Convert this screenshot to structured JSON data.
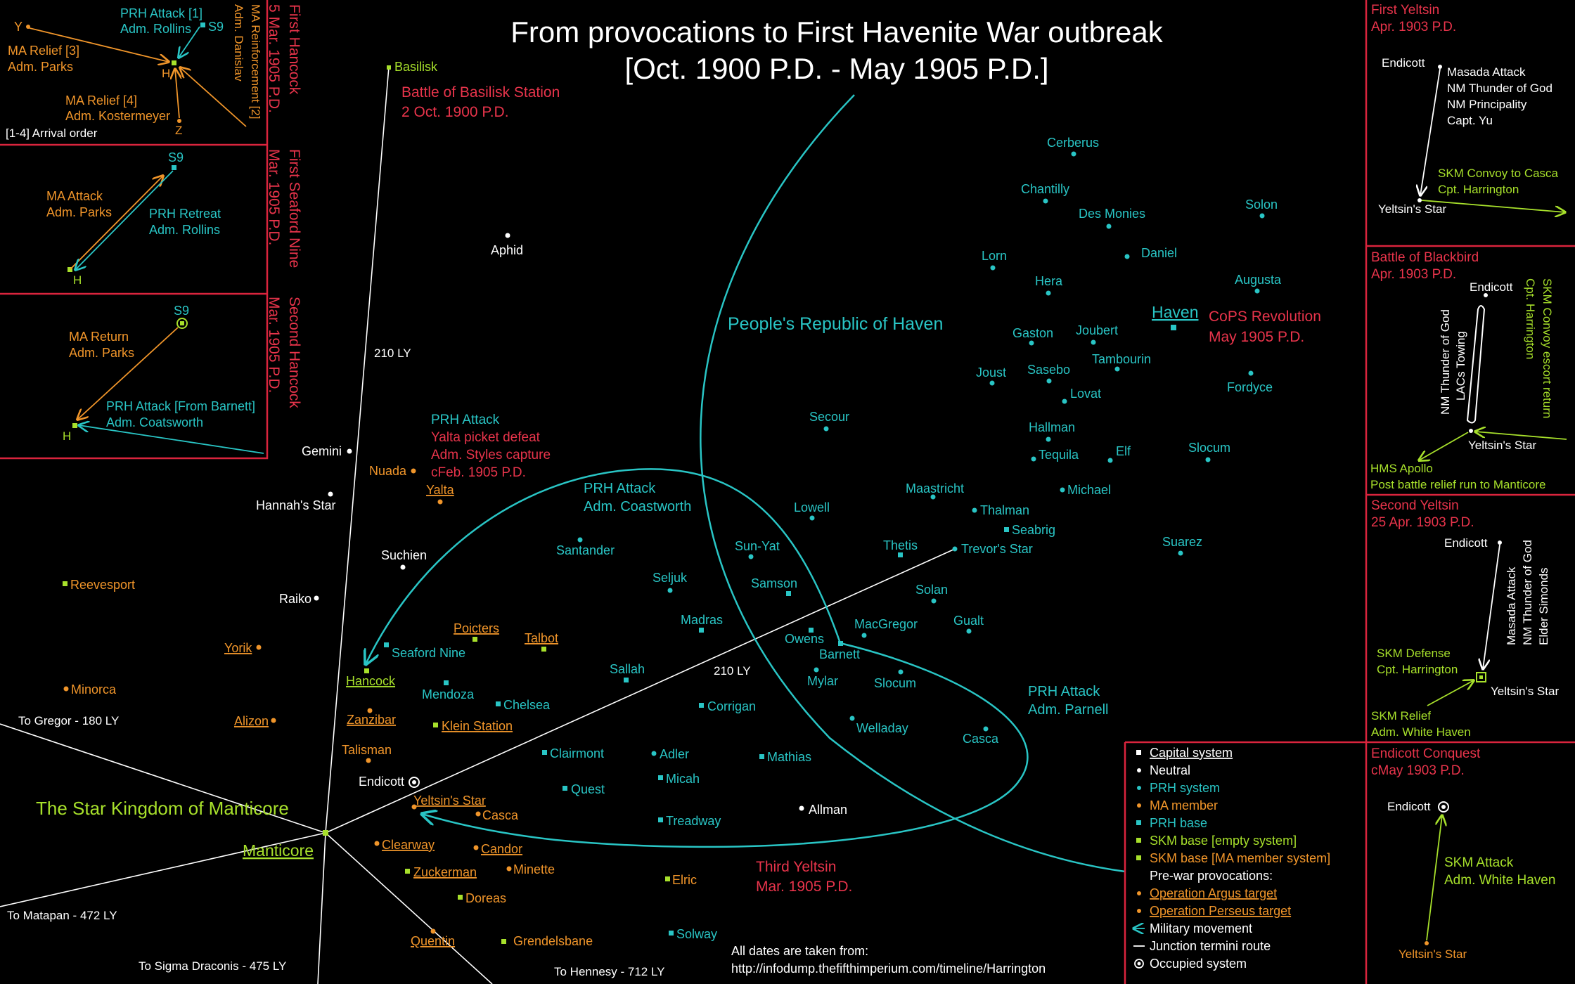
{
  "title": {
    "line1": "From provocations to First Havenite War outbreak",
    "line2": "[Oct. 1900 P.D. - May 1905 P.D.]"
  },
  "colors": {
    "background": "#000000",
    "neutral": "#ffffff",
    "prh": "#29c5c5",
    "ma": "#f0952a",
    "skm": "#a7e02b",
    "event": "#e8344b",
    "frame": "#d9243d"
  },
  "regions": {
    "prh": "People's Republic of Haven",
    "skm": "The Star Kingdom of Manticore"
  },
  "systems": [
    {
      "name": "Basilisk",
      "type": "skm_empty"
    },
    {
      "name": "Aphid",
      "type": "neutral"
    },
    {
      "name": "Gemini",
      "type": "neutral"
    },
    {
      "name": "Hannah's Star",
      "type": "neutral"
    },
    {
      "name": "Suchien",
      "type": "neutral"
    },
    {
      "name": "Raiko",
      "type": "neutral"
    },
    {
      "name": "Endicott",
      "type": "neutral_occupied"
    },
    {
      "name": "Allman",
      "type": "neutral"
    },
    {
      "name": "Reevesport",
      "type": "skm_empty"
    },
    {
      "name": "Minorca",
      "type": "ma"
    },
    {
      "name": "Yorik",
      "type": "ma_argus"
    },
    {
      "name": "Alizon",
      "type": "ma_argus"
    },
    {
      "name": "Nuada",
      "type": "ma"
    },
    {
      "name": "Yalta",
      "type": "ma_argus"
    },
    {
      "name": "Poicters",
      "type": "ma_argus"
    },
    {
      "name": "Talbot",
      "type": "ma_argus"
    },
    {
      "name": "Hancock",
      "type": "skm_empty_argus"
    },
    {
      "name": "Zanzibar",
      "type": "ma_argus"
    },
    {
      "name": "Talisman",
      "type": "ma"
    },
    {
      "name": "Klein Station",
      "type": "skm_empty_argus"
    },
    {
      "name": "Yeltsin's Star",
      "type": "ma_argus"
    },
    {
      "name": "Casca",
      "type": "ma"
    },
    {
      "name": "Clearway",
      "type": "ma_argus"
    },
    {
      "name": "Candor",
      "type": "ma_argus"
    },
    {
      "name": "Minette",
      "type": "ma"
    },
    {
      "name": "Zuckerman",
      "type": "skm_ma_argus"
    },
    {
      "name": "Doreas",
      "type": "skm_empty"
    },
    {
      "name": "Elric",
      "type": "skm_empty"
    },
    {
      "name": "Quentin",
      "type": "ma_argus"
    },
    {
      "name": "Grendelsbane",
      "type": "skm_ma"
    },
    {
      "name": "Solway",
      "type": "prh_base"
    },
    {
      "name": "Seaford Nine",
      "type": "prh_base"
    },
    {
      "name": "Mendoza",
      "type": "prh_base"
    },
    {
      "name": "Chelsea",
      "type": "prh_base"
    },
    {
      "name": "Santander",
      "type": "prh"
    },
    {
      "name": "Seljuk",
      "type": "prh"
    },
    {
      "name": "Madras",
      "type": "prh_base"
    },
    {
      "name": "Sallah",
      "type": "prh_base"
    },
    {
      "name": "Corrigan",
      "type": "prh_base"
    },
    {
      "name": "Clairmont",
      "type": "prh_base"
    },
    {
      "name": "Quest",
      "type": "prh_base"
    },
    {
      "name": "Adler",
      "type": "prh"
    },
    {
      "name": "Micah",
      "type": "prh_base"
    },
    {
      "name": "Treadway",
      "type": "prh_base"
    },
    {
      "name": "Mathias",
      "type": "prh_base"
    },
    {
      "name": "Sun-Yat",
      "type": "prh"
    },
    {
      "name": "Samson",
      "type": "prh_base"
    },
    {
      "name": "Lowell",
      "type": "prh"
    },
    {
      "name": "Owens",
      "type": "prh_base"
    },
    {
      "name": "Barnett",
      "type": "prh_base"
    },
    {
      "name": "Mylar",
      "type": "prh"
    },
    {
      "name": "MacGregor",
      "type": "prh"
    },
    {
      "name": "Slocum",
      "type": "prh"
    },
    {
      "name": "Welladay",
      "type": "prh"
    },
    {
      "name": "Casca",
      "type": "prh"
    },
    {
      "name": "Solan",
      "type": "prh"
    },
    {
      "name": "Gualt",
      "type": "prh"
    },
    {
      "name": "Thetis",
      "type": "prh_base"
    },
    {
      "name": "Trevor's Star",
      "type": "prh"
    },
    {
      "name": "Seabrig",
      "type": "prh_base"
    },
    {
      "name": "Thalman",
      "type": "prh"
    },
    {
      "name": "Maastricht",
      "type": "prh"
    },
    {
      "name": "Michael",
      "type": "prh"
    },
    {
      "name": "Secour",
      "type": "prh"
    },
    {
      "name": "Hallman",
      "type": "prh"
    },
    {
      "name": "Tequila",
      "type": "prh"
    },
    {
      "name": "Elf",
      "type": "prh"
    },
    {
      "name": "Slocum",
      "type": "prh"
    },
    {
      "name": "Suarez",
      "type": "prh"
    },
    {
      "name": "Lovat",
      "type": "prh"
    },
    {
      "name": "Joust",
      "type": "prh"
    },
    {
      "name": "Sasebo",
      "type": "prh"
    },
    {
      "name": "Tambourin",
      "type": "prh"
    },
    {
      "name": "Gaston",
      "type": "prh"
    },
    {
      "name": "Joubert",
      "type": "prh"
    },
    {
      "name": "Fordyce",
      "type": "prh"
    },
    {
      "name": "Hera",
      "type": "prh"
    },
    {
      "name": "Lorn",
      "type": "prh"
    },
    {
      "name": "Augusta",
      "type": "prh"
    },
    {
      "name": "Daniel",
      "type": "prh"
    },
    {
      "name": "Des Monies",
      "type": "prh"
    },
    {
      "name": "Chantilly",
      "type": "prh"
    },
    {
      "name": "Cerberus",
      "type": "prh"
    },
    {
      "name": "Solon",
      "type": "prh"
    },
    {
      "name": "Haven",
      "type": "prh_capital"
    },
    {
      "name": "Manticore",
      "type": "skm_capital"
    }
  ],
  "distances": {
    "basilisk": "210 LY",
    "trevor": "210 LY",
    "gregor": "To Gregor - 180 LY",
    "matapan": "To Matapan - 472 LY",
    "sigma": "To Sigma Draconis - 475 LY",
    "hennessy": "To Hennesy - 712 LY"
  },
  "events": {
    "basilisk": {
      "title": "Battle of Basilisk Station",
      "date": "2 Oct. 1900 P.D."
    },
    "cops": {
      "title": "CoPS Revolution",
      "date": "May 1905 P.D."
    },
    "yalta": {
      "l1": "PRH Attack",
      "l2": "Yalta picket defeat",
      "l3": "Adm. Styles capture",
      "l4": "cFeb. 1905 P.D."
    },
    "coastworth": {
      "l1": "PRH Attack",
      "l2": "Adm. Coastworth"
    },
    "parnell": {
      "l1": "PRH Attack",
      "l2": "Adm. Parnell"
    },
    "third_yeltsin": {
      "title": "Third Yeltsin",
      "date": "Mar. 1905 P.D."
    }
  },
  "sources": {
    "line1": "All dates are taken from:",
    "line2": "http://infodump.thefifthimperium.com/timeline/Harrington"
  },
  "legend": [
    {
      "marker": "square",
      "color": "#ffffff",
      "label": "Capital system",
      "underline": true,
      "label_color": "#ffffff"
    },
    {
      "marker": "dot",
      "color": "#ffffff",
      "label": "Neutral",
      "label_color": "#ffffff"
    },
    {
      "marker": "dot",
      "color": "#29c5c5",
      "label": "PRH system",
      "label_color": "#29c5c5"
    },
    {
      "marker": "dot",
      "color": "#f0952a",
      "label": "MA member",
      "label_color": "#f0952a"
    },
    {
      "marker": "square",
      "color": "#29c5c5",
      "label": "PRH base",
      "label_color": "#29c5c5"
    },
    {
      "marker": "square",
      "color": "#a7e02b",
      "label": "SKM base [empty system]",
      "label_color": "#a7e02b"
    },
    {
      "marker": "square",
      "color": "#a7e02b",
      "label": "SKM base [MA member system]",
      "label_color": "#f0952a"
    },
    {
      "marker": "none",
      "color": "#ffffff",
      "label": "Pre-war provocations:",
      "label_color": "#ffffff"
    },
    {
      "marker": "dot",
      "color": "#f0952a",
      "label": "Operation Argus target",
      "underline": true,
      "label_color": "#f0952a"
    },
    {
      "marker": "dot",
      "color": "#f0952a",
      "label": "Operation Perseus target",
      "underline": true,
      "label_color": "#f0952a"
    },
    {
      "marker": "arrow",
      "color": "#29c5c5",
      "label": "Military movement",
      "label_color": "#ffffff"
    },
    {
      "marker": "line",
      "color": "#ffffff",
      "label": "Junction termini route",
      "label_color": "#ffffff"
    },
    {
      "marker": "ring",
      "color": "#ffffff",
      "label": "Occupied system",
      "label_color": "#ffffff"
    }
  ],
  "insets_left": [
    {
      "title": "First Hancock",
      "date": "5 Mar. 1905 P.D.",
      "labels": {
        "y": "Y",
        "s9": "S9",
        "h": "H",
        "z": "Z",
        "arrival": "[1-4] Arrival order",
        "prh1": "PRH Attack [1]",
        "prh1b": "Adm. Rollins",
        "ma3": "MA Relief [3]",
        "ma3b": "Adm. Parks",
        "ma4": "MA Relief [4]",
        "ma4b": "Adm. Kostermeyer",
        "ma2": "MA Reinforcement [2]",
        "ma2b": "Adm. Danislav"
      }
    },
    {
      "title": "First Seaford Nine",
      "date": "Mar. 1905 P.D.",
      "labels": {
        "s9": "S9",
        "h": "H",
        "ma": "MA Attack",
        "mab": "Adm. Parks",
        "prh": "PRH Retreat",
        "prhb": "Adm. Rollins"
      }
    },
    {
      "title": "Second Hancock",
      "date": "Mar. 1905 P.D.",
      "labels": {
        "s9": "S9",
        "h": "H",
        "ma": "MA Return",
        "mab": "Adm. Parks",
        "prh": "PRH Attack [From Barnett]",
        "prhb": "Adm. Coatsworth"
      }
    }
  ],
  "insets_right": [
    {
      "title": "First Yeltsin",
      "date": "Apr. 1903 P.D.",
      "labels": {
        "endicott": "Endicott",
        "yeltsin": "Yeltsin's Star",
        "attack1": "Masada Attack",
        "attack2": "NM Thunder of God",
        "attack3": "NM Principality",
        "attack4": "Capt. Yu",
        "convoy1": "SKM Convoy to Casca",
        "convoy2": "Cpt. Harrington"
      }
    },
    {
      "title": "Battle of Blackbird",
      "date": "Apr. 1903 P.D.",
      "labels": {
        "endicott": "Endicott",
        "yeltsin": "Yeltsin's Star",
        "nm1": "NM Thunder of God",
        "nm2": "LACs Towing",
        "esc1": "SKM Convoy escort return",
        "esc2": "Cpt. Harrington",
        "apollo1": "HMS Apollo",
        "apollo2": "Post battle relief run to Manticore"
      }
    },
    {
      "title": "Second Yeltsin",
      "date": "25 Apr. 1903 P.D.",
      "labels": {
        "endicott": "Endicott",
        "yeltsin": "Yeltsin's Star",
        "m1": "Masada Attack",
        "m2": "NM Thunder of God",
        "m3": "Elder Simonds",
        "def1": "SKM Defense",
        "def2": "Cpt. Harrington",
        "rel1": "SKM Relief",
        "rel2": "Adm. White Haven"
      }
    },
    {
      "title": "Endicott Conquest",
      "date": "cMay 1903 P.D.",
      "labels": {
        "endicott": "Endicott",
        "yeltsin": "Yeltsin's Star",
        "a1": "SKM Attack",
        "a2": "Adm. White Haven"
      }
    }
  ]
}
